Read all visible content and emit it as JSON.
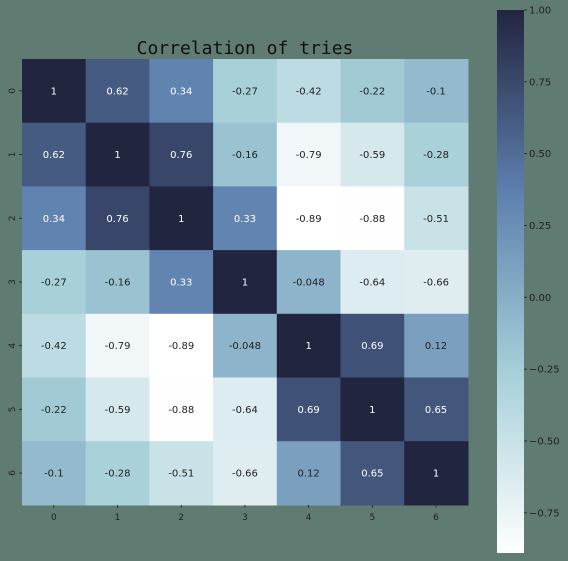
{
  "chart_data": {
    "type": "heatmap",
    "title": "Correlation of tries",
    "x_labels": [
      "0",
      "1",
      "2",
      "3",
      "4",
      "5",
      "6"
    ],
    "y_labels": [
      "0",
      "1",
      "2",
      "3",
      "4",
      "5",
      "6"
    ],
    "values": [
      [
        1,
        0.62,
        0.34,
        -0.27,
        -0.42,
        -0.22,
        -0.1
      ],
      [
        0.62,
        1,
        0.76,
        -0.16,
        -0.79,
        -0.59,
        -0.28
      ],
      [
        0.34,
        0.76,
        1,
        0.33,
        -0.89,
        -0.88,
        -0.51
      ],
      [
        -0.27,
        -0.16,
        0.33,
        1,
        -0.048,
        -0.64,
        -0.66
      ],
      [
        -0.42,
        -0.79,
        -0.89,
        -0.048,
        1,
        0.69,
        0.12
      ],
      [
        -0.22,
        -0.59,
        -0.88,
        -0.64,
        0.69,
        1,
        0.65
      ],
      [
        -0.1,
        -0.28,
        -0.51,
        -0.66,
        0.12,
        0.65,
        1
      ]
    ],
    "annotations": [
      [
        "1",
        "0.62",
        "0.34",
        "-0.27",
        "-0.42",
        "-0.22",
        "-0.1"
      ],
      [
        "0.62",
        "1",
        "0.76",
        "-0.16",
        "-0.79",
        "-0.59",
        "-0.28"
      ],
      [
        "0.34",
        "0.76",
        "1",
        "0.33",
        "-0.89",
        "-0.88",
        "-0.51"
      ],
      [
        "-0.27",
        "-0.16",
        "0.33",
        "1",
        "-0.048",
        "-0.64",
        "-0.66"
      ],
      [
        "-0.42",
        "-0.79",
        "-0.89",
        "-0.048",
        "1",
        "0.69",
        "0.12"
      ],
      [
        "-0.22",
        "-0.59",
        "-0.88",
        "-0.64",
        "0.69",
        "1",
        "0.65"
      ],
      [
        "-0.1",
        "-0.28",
        "-0.51",
        "-0.66",
        "0.12",
        "0.65",
        "1"
      ]
    ],
    "vmin": -0.89,
    "vmax": 1.0,
    "colorbar_ticks": [
      1.0,
      0.75,
      0.5,
      0.25,
      0.0,
      -0.25,
      -0.5,
      -0.75
    ],
    "colorbar_tick_labels": [
      "1.00",
      "0.75",
      "0.50",
      "0.25",
      "0.00",
      "−0.25",
      "−0.50",
      "−0.75"
    ],
    "colormap": [
      "#ffffff",
      "#a6cfd8",
      "#5d7fae",
      "#22253f"
    ],
    "background_color": "#607b72",
    "grid": false,
    "legend": "colorbar-right"
  }
}
